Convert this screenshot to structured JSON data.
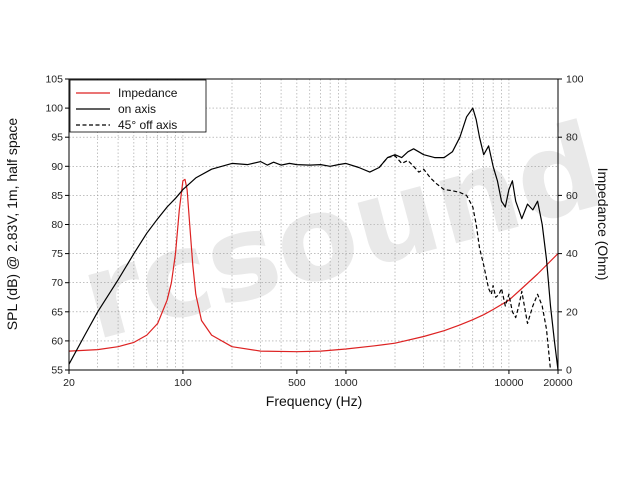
{
  "chart_data": {
    "type": "line",
    "xlabel": "Frequency (Hz)",
    "ylabel_left": "SPL (dB) @ 2.83V, 1m, half space",
    "ylabel_right": "Impedance (Ohm)",
    "x_scale": "log",
    "xlim": [
      20,
      20000
    ],
    "ylim_left": [
      55,
      105
    ],
    "ylim_right": [
      0,
      100
    ],
    "x_ticks": [
      {
        "value": 20,
        "label": "20"
      },
      {
        "value": 100,
        "label": "100"
      },
      {
        "value": 500,
        "label": "500"
      },
      {
        "value": 1000,
        "label": "1000"
      },
      {
        "value": 10000,
        "label": "10000"
      },
      {
        "value": 20000,
        "label": "20000"
      }
    ],
    "y_ticks_left": [
      "55",
      "60",
      "65",
      "70",
      "75",
      "80",
      "85",
      "90",
      "95",
      "100",
      "105"
    ],
    "y_ticks_right": [
      "0",
      "20",
      "40",
      "60",
      "80",
      "100"
    ],
    "grid": true,
    "legend_position": "top-left",
    "watermark": "rcsound",
    "series": [
      {
        "name": "Impedance",
        "axis": "right",
        "color": "#dd2222",
        "dash": "solid",
        "x": [
          20,
          30,
          40,
          50,
          60,
          70,
          80,
          85,
          90,
          95,
          100,
          103,
          106,
          110,
          115,
          120,
          130,
          150,
          200,
          300,
          500,
          700,
          1000,
          1500,
          2000,
          3000,
          4000,
          5000,
          6000,
          7000,
          8000,
          10000,
          12000,
          15000,
          20000
        ],
        "values": [
          6.5,
          7.0,
          8.0,
          9.5,
          12.0,
          16.0,
          24.0,
          30.0,
          40.0,
          55.0,
          65.0,
          65.5,
          62.0,
          50.0,
          36.0,
          26.0,
          17.0,
          12.0,
          8.0,
          6.5,
          6.3,
          6.5,
          7.2,
          8.3,
          9.2,
          11.5,
          13.5,
          15.5,
          17.3,
          19.0,
          20.8,
          24.0,
          28.0,
          33.0,
          40.0
        ]
      },
      {
        "name": "on axis",
        "axis": "left",
        "color": "#000000",
        "dash": "solid",
        "x": [
          20,
          25,
          30,
          40,
          50,
          60,
          70,
          80,
          90,
          100,
          120,
          150,
          200,
          250,
          300,
          330,
          360,
          400,
          450,
          500,
          600,
          700,
          800,
          900,
          1000,
          1200,
          1400,
          1600,
          1800,
          2000,
          2200,
          2400,
          2600,
          2800,
          3000,
          3500,
          4000,
          4500,
          5000,
          5500,
          6000,
          6300,
          6600,
          7000,
          7500,
          8000,
          8500,
          9000,
          9500,
          10000,
          10500,
          11000,
          11500,
          12000,
          13000,
          14000,
          15000,
          16000,
          17000,
          17500,
          18000,
          19000,
          20000
        ],
        "values": [
          56.0,
          61.0,
          65.0,
          70.5,
          75.0,
          78.5,
          81.0,
          83.0,
          84.5,
          86.0,
          88.0,
          89.5,
          90.5,
          90.3,
          90.8,
          90.2,
          90.7,
          90.2,
          90.5,
          90.3,
          90.2,
          90.3,
          90.0,
          90.3,
          90.5,
          89.8,
          89.0,
          89.8,
          91.5,
          92.0,
          91.5,
          92.5,
          93.0,
          92.5,
          92.0,
          91.5,
          91.5,
          92.5,
          95.0,
          98.5,
          100.0,
          98.0,
          95.0,
          92.0,
          93.5,
          90.0,
          87.5,
          84.0,
          83.0,
          86.0,
          87.5,
          84.0,
          82.5,
          81.0,
          83.5,
          82.5,
          84.0,
          80.0,
          74.0,
          70.0,
          66.0,
          60.0,
          55.0
        ]
      },
      {
        "name": "45° off axis",
        "axis": "left",
        "color": "#000000",
        "dash": "dashed",
        "x": [
          1600,
          1800,
          2000,
          2200,
          2400,
          2600,
          2800,
          3000,
          3300,
          3600,
          4000,
          4500,
          5000,
          5500,
          6000,
          6300,
          6600,
          7000,
          7500,
          7800,
          8000,
          8300,
          8700,
          9000,
          9500,
          10000,
          10500,
          11000,
          11500,
          12000,
          13000,
          14000,
          15000,
          16000,
          17000,
          18000
        ],
        "values": [
          89.8,
          91.5,
          91.8,
          90.5,
          91.0,
          90.0,
          89.0,
          89.5,
          88.0,
          87.0,
          86.0,
          85.8,
          85.5,
          85.0,
          83.0,
          80.0,
          76.0,
          73.0,
          69.0,
          68.0,
          69.5,
          67.5,
          68.0,
          69.0,
          66.0,
          68.0,
          65.0,
          64.0,
          66.0,
          68.5,
          63.0,
          66.0,
          68.0,
          66.0,
          62.0,
          55.0
        ]
      }
    ]
  }
}
